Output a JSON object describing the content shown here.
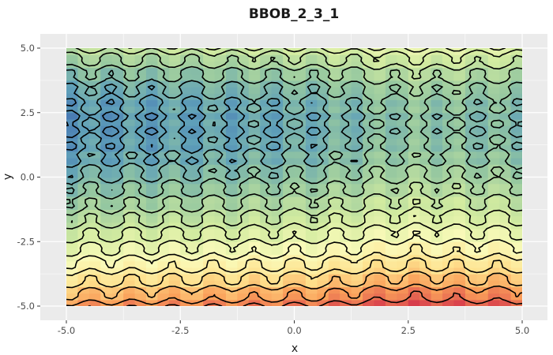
{
  "chart_data": {
    "type": "heatmap",
    "title": "BBOB_2_3_1",
    "xlabel": "x",
    "ylabel": "y",
    "xlim": [
      -5.0,
      5.0
    ],
    "ylim": [
      -5.0,
      5.0
    ],
    "x_ticks": [
      "-5.0",
      "-2.5",
      "0.0",
      "2.5",
      "5.0"
    ],
    "y_ticks": [
      "5.0",
      "2.5",
      "0.0",
      "-2.5",
      "-5.0"
    ],
    "x_tick_values": [
      -5.0,
      -2.5,
      0.0,
      2.5,
      5.0
    ],
    "y_tick_values": [
      5.0,
      2.5,
      0.0,
      -2.5,
      -5.0
    ],
    "grid": true,
    "legend": "none",
    "colorscale": "Spectral (blue = low, red = high)",
    "colors": {
      "panel_background": "#ebebeb",
      "grid_line": "#ffffff",
      "contour_line": "#000000"
    },
    "overlays": [
      "filled heatmap",
      "contour lines"
    ]
  }
}
